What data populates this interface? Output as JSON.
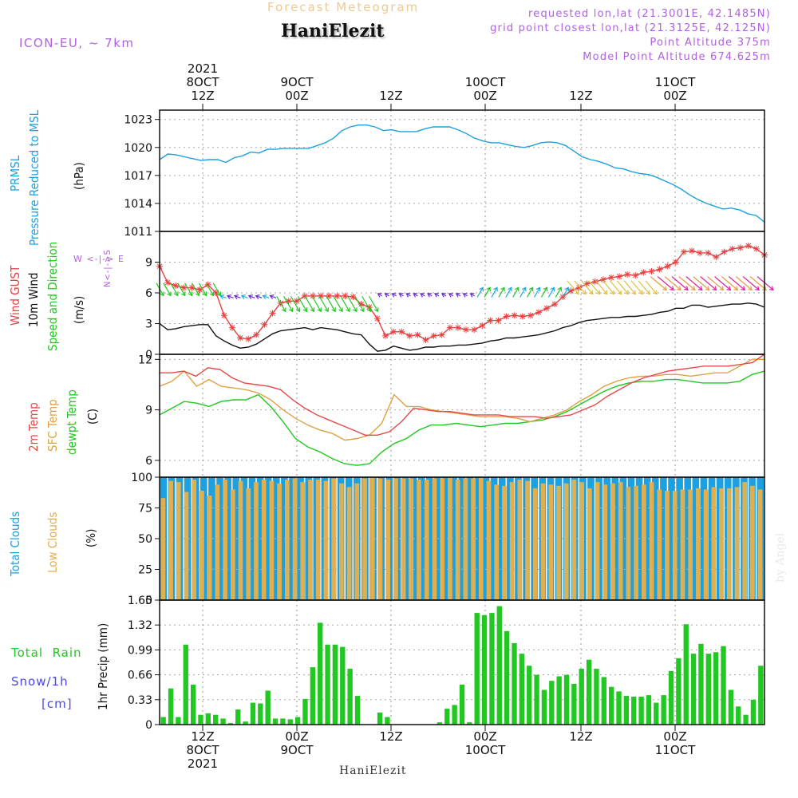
{
  "header": {
    "title": "Forecast Meteogram",
    "station": "HaniElezit",
    "model": "ICON-EU, ~ 7km",
    "requested": "requested lon,lat (21.3001E, 42.1485N)",
    "grid_point": "grid point closest lon,lat (21.3125E, 42.125N)",
    "point_altitude": "Point Altitude 375m",
    "model_altitude": "Model Point Altitude 674.625m",
    "footer_station": "HaniElezit",
    "watermark": "by Angel"
  },
  "time_axis": {
    "top_labels": [
      {
        "line1": "2021",
        "line2": "8OCT",
        "line3": "12Z"
      },
      {
        "line1": "",
        "line2": "9OCT",
        "line3": "00Z"
      },
      {
        "line1": "",
        "line2": "",
        "line3": "12Z"
      },
      {
        "line1": "",
        "line2": "10OCT",
        "line3": "00Z"
      },
      {
        "line1": "",
        "line2": "",
        "line3": "12Z"
      },
      {
        "line1": "",
        "line2": "11OCT",
        "line3": "00Z"
      }
    ],
    "bottom_labels": [
      {
        "line1": "12Z",
        "line2": "8OCT",
        "line3": "2021"
      },
      {
        "line1": "00Z",
        "line2": "9OCT",
        "line3": ""
      },
      {
        "line1": "12Z",
        "line2": "",
        "line3": ""
      },
      {
        "line1": "00Z",
        "line2": "10OCT",
        "line3": ""
      },
      {
        "line1": "12Z",
        "line2": "",
        "line3": ""
      },
      {
        "line1": "00Z",
        "line2": "11OCT",
        "line3": ""
      }
    ]
  },
  "panel_labels": {
    "pressure": [
      "PRMSL",
      "Pressure Reduced to MSL",
      "(hPa)"
    ],
    "wind": [
      "Wind GUST",
      "10m Wind",
      "Speed and Direction",
      "(m/s)"
    ],
    "compass": "W <-|-> E",
    "compass_ns": "N<-|->S",
    "temp": [
      "2m Temp",
      "SFC Temp",
      "dewpt Temp",
      "(C)"
    ],
    "clouds": [
      "Total Clouds",
      "Low Clouds",
      "(%)"
    ],
    "precip": [
      "1hr Precip (mm)"
    ],
    "precip_legend": [
      "Total  Rain",
      "Snow/1h",
      "[cm]"
    ]
  },
  "colors": {
    "pressure": "#1ca0e0",
    "gust": "#e84040",
    "wind": "#111111",
    "temp2m": "#e84848",
    "sfc": "#e0a040",
    "dewpt": "#20c820",
    "total_clouds": "#1ca0e0",
    "low_clouds": "#e0b050",
    "rain": "#22c822",
    "snow": "#4848e8",
    "compass": "#b060e0"
  },
  "chart_data": [
    {
      "type": "line",
      "panel": "pressure",
      "ylabel": "(hPa)",
      "yticks": [
        1011,
        1014,
        1017,
        1020,
        1023
      ],
      "ylim": [
        1011,
        1024
      ],
      "series": [
        {
          "name": "PRMSL",
          "values": [
            1018.7,
            1019.3,
            1019.2,
            1019.0,
            1018.8,
            1018.6,
            1018.7,
            1018.7,
            1018.4,
            1018.9,
            1019.1,
            1019.5,
            1019.4,
            1019.8,
            1019.8,
            1019.9,
            1019.9,
            1019.9,
            1019.9,
            1020.2,
            1020.5,
            1021.0,
            1021.8,
            1022.2,
            1022.4,
            1022.4,
            1022.2,
            1021.8,
            1021.9,
            1021.7,
            1021.7,
            1021.7,
            1022.0,
            1022.2,
            1022.2,
            1022.2,
            1021.9,
            1021.5,
            1021.0,
            1020.7,
            1020.5,
            1020.5,
            1020.3,
            1020.1,
            1020.0,
            1020.2,
            1020.5,
            1020.6,
            1020.5,
            1020.2,
            1019.6,
            1019.0,
            1018.7,
            1018.5,
            1018.2,
            1017.8,
            1017.7,
            1017.4,
            1017.2,
            1017.1,
            1016.8,
            1016.4,
            1016.0,
            1015.5,
            1014.9,
            1014.4,
            1014.0,
            1013.7,
            1013.4,
            1013.5,
            1013.3,
            1012.9,
            1012.7,
            1012.0
          ]
        }
      ]
    },
    {
      "type": "line",
      "panel": "wind",
      "ylabel": "(m/s)",
      "yticks": [
        0,
        3,
        6,
        9
      ],
      "ylim": [
        0,
        12
      ],
      "series": [
        {
          "name": "Wind GUST",
          "values": [
            8.6,
            7.0,
            6.7,
            6.5,
            6.5,
            6.3,
            6.8,
            6.0,
            3.8,
            2.6,
            1.6,
            1.5,
            1.9,
            2.9,
            4.0,
            5.0,
            5.2,
            5.2,
            5.7,
            5.7,
            5.7,
            5.7,
            5.7,
            5.7,
            5.6,
            4.9,
            4.6,
            3.5,
            1.8,
            2.2,
            2.2,
            1.8,
            1.9,
            1.4,
            1.8,
            1.9,
            2.6,
            2.6,
            2.4,
            2.4,
            2.8,
            3.3,
            3.3,
            3.7,
            3.8,
            3.7,
            3.8,
            4.1,
            4.5,
            4.9,
            5.6,
            6.2,
            6.5,
            6.9,
            7.1,
            7.3,
            7.5,
            7.6,
            7.8,
            7.7,
            8.0,
            8.1,
            8.3,
            8.6,
            9.0,
            10.0,
            10.1,
            9.9,
            9.9,
            9.5,
            10.0,
            10.3,
            10.4,
            10.6,
            10.3,
            9.7
          ]
        },
        {
          "name": "10m Wind",
          "values": [
            3.0,
            2.4,
            2.5,
            2.7,
            2.8,
            2.9,
            2.9,
            1.8,
            1.3,
            0.9,
            0.6,
            0.7,
            1.0,
            1.5,
            2.0,
            2.3,
            2.4,
            2.5,
            2.6,
            2.4,
            2.6,
            2.5,
            2.4,
            2.2,
            2.0,
            1.9,
            1.0,
            0.3,
            0.4,
            0.8,
            0.6,
            0.4,
            0.5,
            0.7,
            0.7,
            0.8,
            0.8,
            0.9,
            0.9,
            1.0,
            1.1,
            1.3,
            1.4,
            1.6,
            1.6,
            1.7,
            1.8,
            1.9,
            2.1,
            2.3,
            2.6,
            2.8,
            3.1,
            3.3,
            3.4,
            3.5,
            3.6,
            3.6,
            3.7,
            3.7,
            3.8,
            3.9,
            4.1,
            4.2,
            4.5,
            4.5,
            4.8,
            4.8,
            4.6,
            4.7,
            4.8,
            4.9,
            4.9,
            5.0,
            4.9,
            4.6
          ]
        }
      ]
    },
    {
      "type": "line",
      "panel": "temperature",
      "ylabel": "(C)",
      "yticks": [
        6,
        9,
        12
      ],
      "ylim": [
        5.0,
        12.3
      ],
      "series": [
        {
          "name": "2m Temp",
          "values": [
            11.2,
            11.2,
            11.3,
            11.0,
            11.5,
            11.4,
            10.9,
            10.6,
            10.5,
            10.4,
            10.2,
            9.6,
            9.1,
            8.7,
            8.4,
            8.1,
            7.8,
            7.5,
            7.5,
            7.7,
            8.3,
            9.1,
            9.0,
            8.9,
            8.9,
            8.8,
            8.7,
            8.7,
            8.7,
            8.6,
            8.6,
            8.6,
            8.5,
            8.6,
            8.7,
            9.0,
            9.3,
            9.8,
            10.2,
            10.6,
            10.9,
            11.1,
            11.3,
            11.4,
            11.5,
            11.6,
            11.6,
            11.6,
            11.7,
            11.8,
            12.3
          ]
        },
        {
          "name": "SFC Temp",
          "values": [
            10.4,
            10.7,
            11.3,
            10.4,
            10.8,
            10.4,
            10.3,
            10.2,
            10.0,
            9.6,
            9.0,
            8.5,
            8.1,
            7.8,
            7.6,
            7.2,
            7.3,
            7.5,
            8.2,
            9.9,
            9.2,
            9.2,
            9.0,
            8.9,
            8.8,
            8.7,
            8.6,
            8.6,
            8.6,
            8.5,
            8.3,
            8.5,
            8.7,
            9.0,
            9.5,
            9.9,
            10.4,
            10.7,
            10.9,
            11.0,
            11.0,
            11.1,
            11.1,
            11.0,
            11.1,
            11.2,
            11.2,
            11.6,
            12.0,
            12.0
          ]
        },
        {
          "name": "dewpt Temp",
          "values": [
            8.7,
            9.1,
            9.5,
            9.4,
            9.2,
            9.5,
            9.6,
            9.6,
            9.9,
            9.2,
            8.3,
            7.3,
            6.8,
            6.5,
            6.1,
            5.8,
            5.7,
            5.8,
            6.5,
            7.0,
            7.3,
            7.8,
            8.1,
            8.1,
            8.2,
            8.1,
            8.0,
            8.1,
            8.2,
            8.2,
            8.3,
            8.4,
            8.6,
            8.9,
            9.3,
            9.7,
            10.1,
            10.4,
            10.6,
            10.7,
            10.7,
            10.8,
            10.8,
            10.7,
            10.6,
            10.6,
            10.6,
            10.7,
            11.1,
            11.3
          ]
        }
      ]
    },
    {
      "type": "bar",
      "panel": "clouds",
      "ylabel": "(%)",
      "yticks": [
        0,
        25,
        50,
        75,
        100
      ],
      "ylim": [
        0,
        100
      ],
      "series": [
        {
          "name": "Total Clouds",
          "values": [
            100,
            100,
            100,
            100,
            100,
            100,
            100,
            100,
            100,
            100,
            100,
            100,
            100,
            100,
            100,
            100,
            100,
            100,
            100,
            100,
            100,
            100,
            100,
            100,
            100,
            100,
            100,
            100,
            100,
            100,
            100,
            100,
            100,
            100,
            100,
            100,
            100,
            100,
            100,
            100,
            100,
            100,
            100,
            100,
            100,
            100,
            100,
            100,
            100,
            100,
            100,
            100,
            100,
            100,
            100,
            100,
            100,
            100,
            100,
            100,
            100,
            100,
            100,
            100,
            100,
            100,
            100,
            100,
            100,
            100,
            100,
            100,
            100,
            100,
            100
          ]
        },
        {
          "name": "Low Clouds",
          "values": [
            83,
            97,
            96,
            88,
            98,
            89,
            85,
            94,
            98,
            90,
            97,
            91,
            96,
            98,
            97,
            95,
            98,
            99,
            96,
            98,
            98,
            97,
            99,
            95,
            92,
            95,
            99,
            100,
            99,
            98,
            99,
            99,
            99,
            98,
            98,
            99,
            99,
            100,
            98,
            99,
            99,
            100,
            97,
            94,
            93,
            96,
            98,
            97,
            91,
            95,
            94,
            93,
            95,
            98,
            96,
            91,
            96,
            94,
            95,
            96,
            92,
            93,
            94,
            96,
            90,
            89,
            89,
            90,
            90,
            91,
            90,
            92,
            91,
            91,
            92,
            96,
            93,
            90
          ]
        }
      ]
    },
    {
      "type": "bar",
      "panel": "precipitation",
      "ylabel": "1hr Precip (mm)",
      "yticks": [
        0,
        0.33,
        0.66,
        0.99,
        1.32,
        1.65
      ],
      "ylim": [
        0,
        1.65
      ],
      "series": [
        {
          "name": "Total Rain",
          "values": [
            0.1,
            0.48,
            0.1,
            1.06,
            0.53,
            0.13,
            0.15,
            0.13,
            0.08,
            0.02,
            0.2,
            0.04,
            0.29,
            0.28,
            0.45,
            0.08,
            0.08,
            0.07,
            0.1,
            0.34,
            0.76,
            1.35,
            1.06,
            1.06,
            1.03,
            0.74,
            0.38,
            0.0,
            0.0,
            0.16,
            0.1,
            0.0,
            0.0,
            0.0,
            0.0,
            0.0,
            0.0,
            0.03,
            0.21,
            0.26,
            0.53,
            0.03,
            1.48,
            1.45,
            1.48,
            1.57,
            1.24,
            1.08,
            0.94,
            0.78,
            0.66,
            0.46,
            0.58,
            0.64,
            0.66,
            0.54,
            0.74,
            0.86,
            0.74,
            0.63,
            0.5,
            0.44,
            0.38,
            0.37,
            0.37,
            0.39,
            0.29,
            0.39,
            0.71,
            0.88,
            1.33,
            0.94,
            1.07,
            0.94,
            0.96,
            1.04,
            0.46,
            0.24,
            0.13,
            0.33,
            0.78
          ]
        },
        {
          "name": "Snow/1h",
          "values": [
            0
          ]
        }
      ]
    }
  ]
}
